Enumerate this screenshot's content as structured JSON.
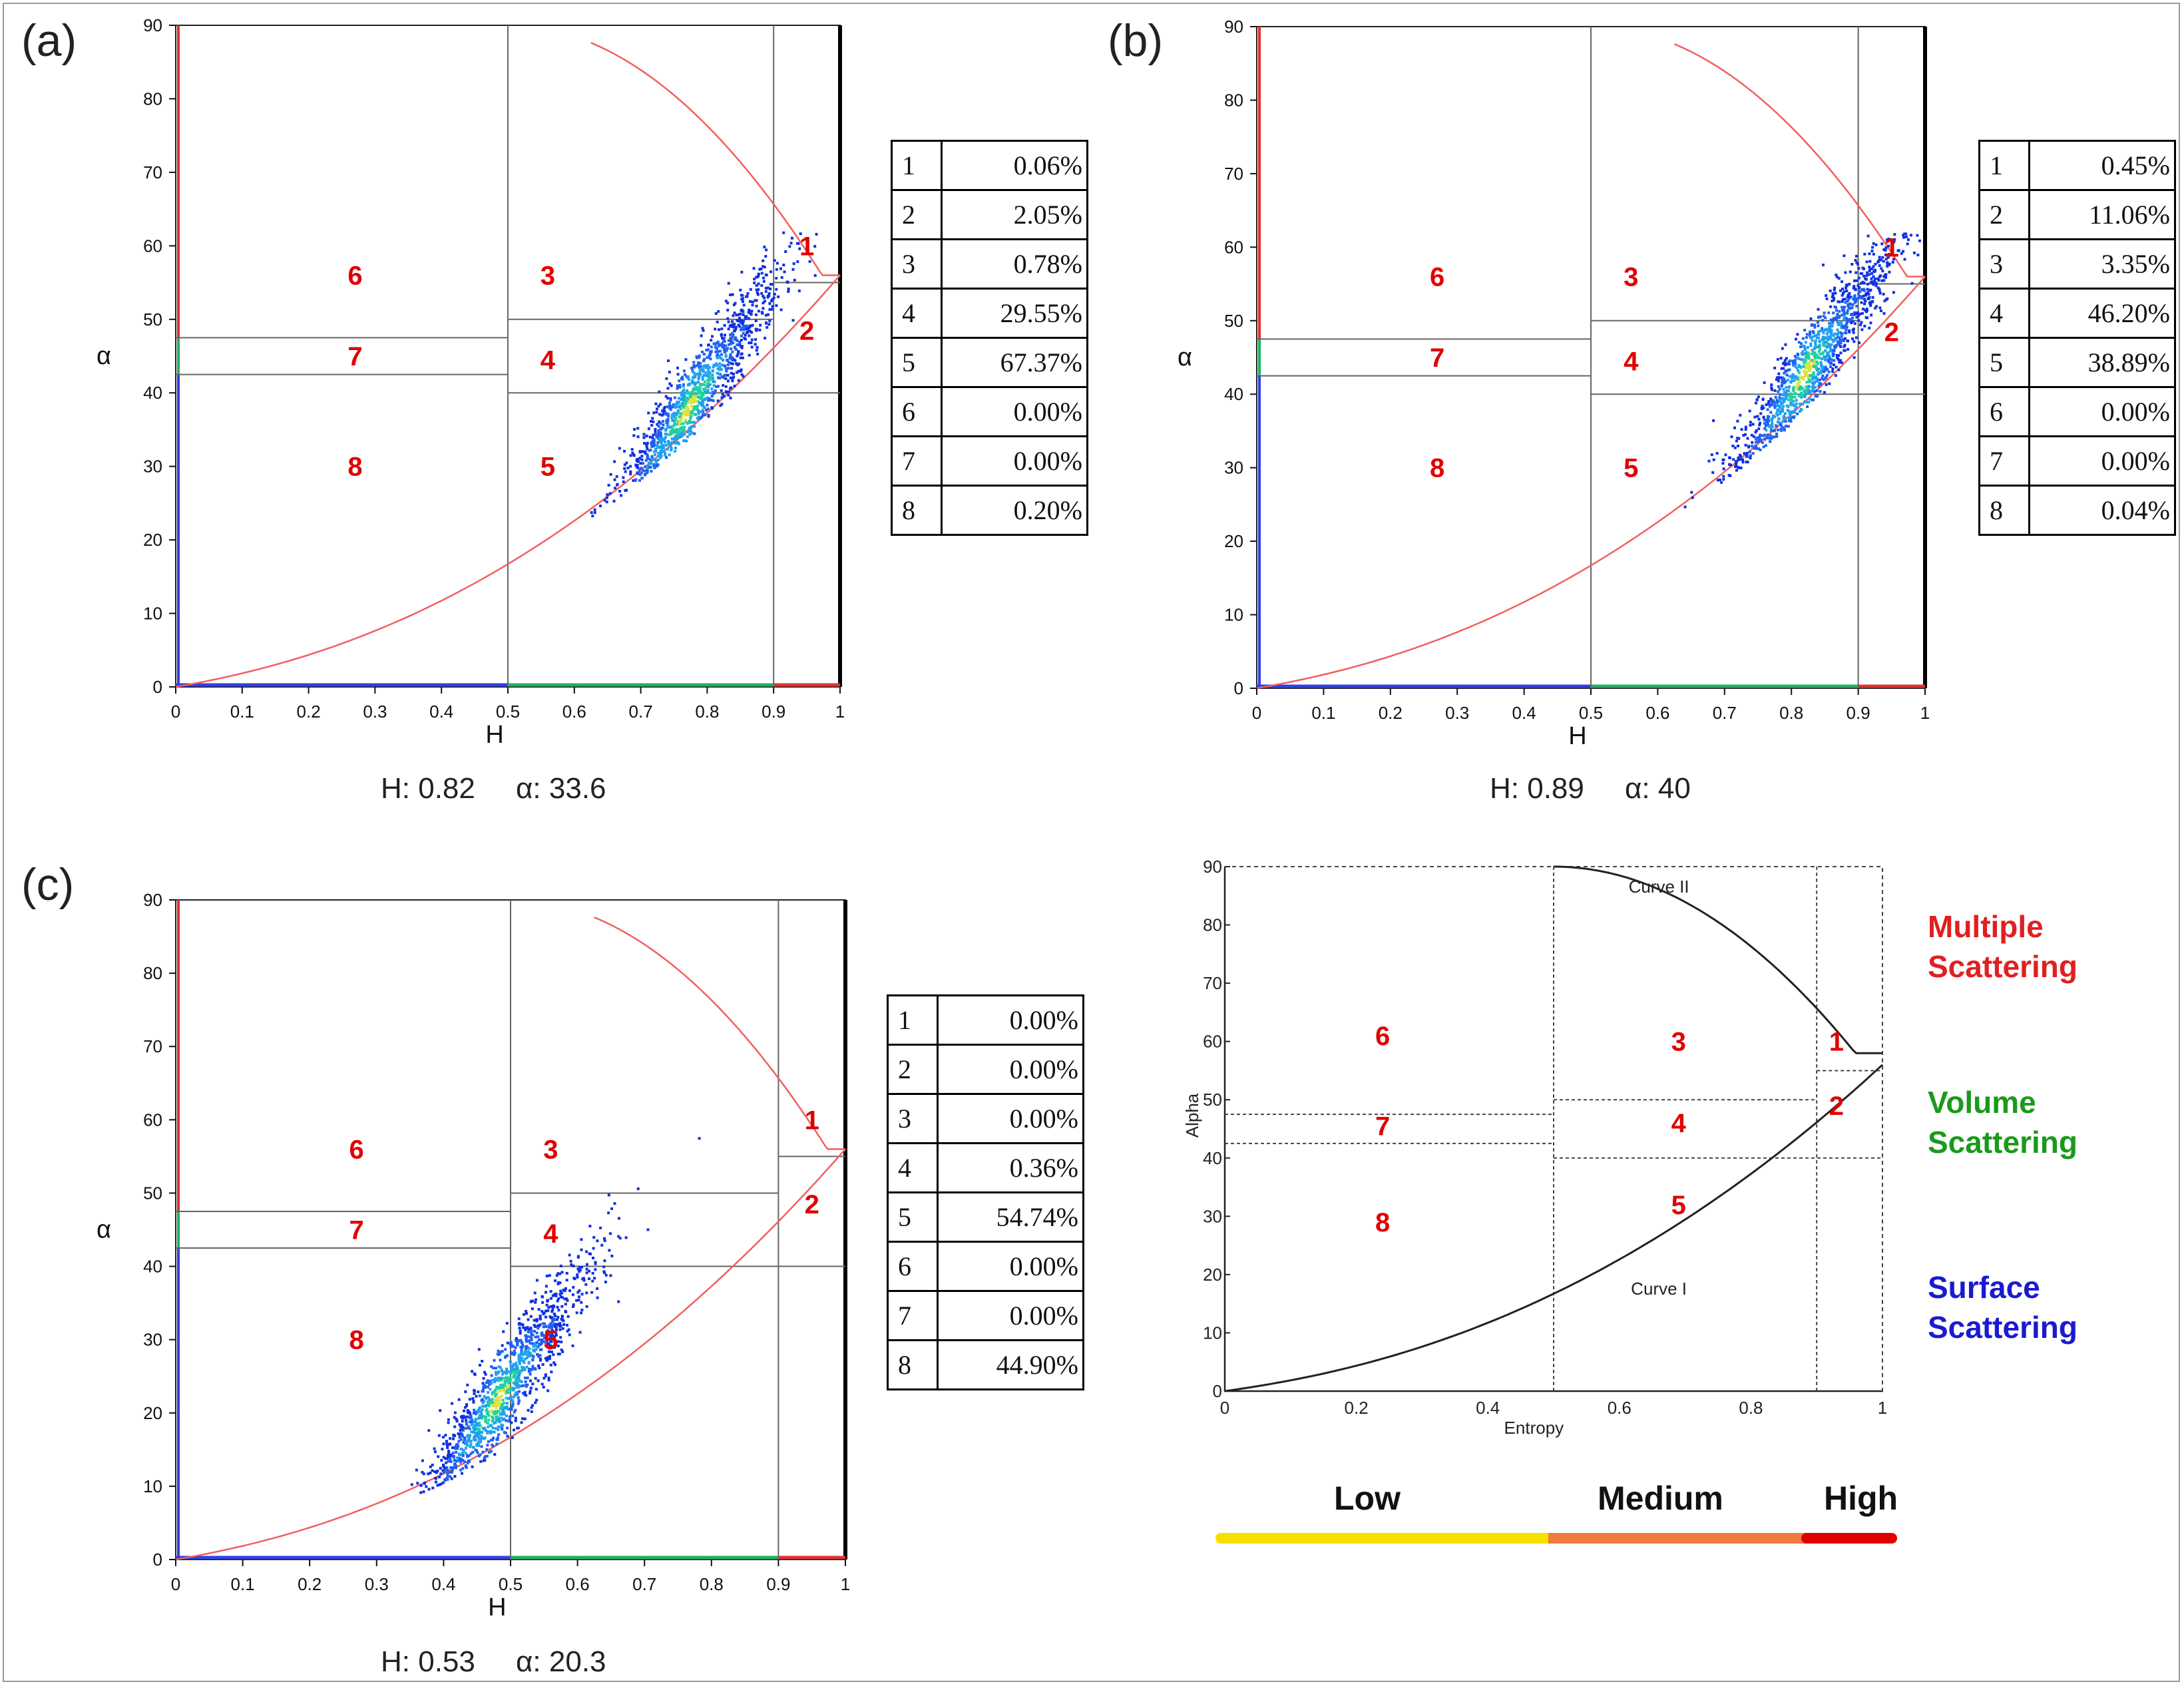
{
  "panels": [
    {
      "id": "a",
      "label": "(a)",
      "stats": "H: 0.82     α: 33.6",
      "xlabel": "H",
      "ylabel": "α",
      "xticks": [
        "0",
        "0.1",
        "0.2",
        "0.3",
        "0.4",
        "0.5",
        "0.6",
        "0.7",
        "0.8",
        "0.9",
        "1"
      ],
      "yticks": [
        "0",
        "10",
        "20",
        "30",
        "40",
        "50",
        "60",
        "70",
        "80",
        "90"
      ],
      "zones": [
        {
          "name": "1",
          "pct": "0.06%"
        },
        {
          "name": "2",
          "pct": "2.05%"
        },
        {
          "name": "3",
          "pct": "0.78%"
        },
        {
          "name": "4",
          "pct": "29.55%"
        },
        {
          "name": "5",
          "pct": "67.37%"
        },
        {
          "name": "6",
          "pct": "0.00%"
        },
        {
          "name": "7",
          "pct": "0.00%"
        },
        {
          "name": "8",
          "pct": "0.20%"
        }
      ],
      "region_labels": [
        "1",
        "2",
        "3",
        "4",
        "5",
        "6",
        "7",
        "8"
      ],
      "cluster": {
        "h": 0.77,
        "alpha": 38
      }
    },
    {
      "id": "b",
      "label": "(b)",
      "stats": "H: 0.89     α: 40",
      "xlabel": "H",
      "ylabel": "α",
      "xticks": [
        "0",
        "0.1",
        "0.2",
        "0.3",
        "0.4",
        "0.5",
        "0.6",
        "0.7",
        "0.8",
        "0.9",
        "1"
      ],
      "yticks": [
        "0",
        "10",
        "20",
        "30",
        "40",
        "50",
        "60",
        "70",
        "80",
        "90"
      ],
      "zones": [
        {
          "name": "1",
          "pct": "0.45%"
        },
        {
          "name": "2",
          "pct": "11.06%"
        },
        {
          "name": "3",
          "pct": "3.35%"
        },
        {
          "name": "4",
          "pct": "46.20%"
        },
        {
          "name": "5",
          "pct": "38.89%"
        },
        {
          "name": "6",
          "pct": "0.00%"
        },
        {
          "name": "7",
          "pct": "0.00%"
        },
        {
          "name": "8",
          "pct": "0.04%"
        }
      ],
      "region_labels": [
        "1",
        "2",
        "3",
        "4",
        "5",
        "6",
        "7",
        "8"
      ],
      "cluster": {
        "h": 0.82,
        "alpha": 43
      }
    },
    {
      "id": "c",
      "label": "(c)",
      "stats": "H: 0.53     α: 20.3",
      "xlabel": "H",
      "ylabel": "α",
      "xticks": [
        "0",
        "0.1",
        "0.2",
        "0.3",
        "0.4",
        "0.5",
        "0.6",
        "0.7",
        "0.8",
        "0.9",
        "1"
      ],
      "yticks": [
        "0",
        "10",
        "20",
        "30",
        "40",
        "50",
        "60",
        "70",
        "80",
        "90"
      ],
      "zones": [
        {
          "name": "1",
          "pct": "0.00%"
        },
        {
          "name": "2",
          "pct": "0.00%"
        },
        {
          "name": "3",
          "pct": "0.00%"
        },
        {
          "name": "4",
          "pct": "0.36%"
        },
        {
          "name": "5",
          "pct": "54.74%"
        },
        {
          "name": "6",
          "pct": "0.00%"
        },
        {
          "name": "7",
          "pct": "0.00%"
        },
        {
          "name": "8",
          "pct": "44.90%"
        }
      ],
      "region_labels": [
        "1",
        "2",
        "3",
        "4",
        "5",
        "6",
        "7",
        "8"
      ],
      "cluster": {
        "h": 0.48,
        "alpha": 22
      }
    }
  ],
  "reference_plot": {
    "xlabel": "Entropy",
    "ylabel": "Alpha",
    "xticks": [
      "0",
      "0.2",
      "0.4",
      "0.6",
      "0.8",
      "1"
    ],
    "yticks": [
      "0",
      "10",
      "20",
      "30",
      "40",
      "50",
      "60",
      "70",
      "80",
      "90"
    ],
    "curve_upper": "Curve II",
    "curve_lower": "Curve I",
    "region_labels": [
      "1",
      "2",
      "3",
      "4",
      "5",
      "6",
      "7",
      "8"
    ]
  },
  "legend": [
    {
      "line1": "Multiple",
      "line2": "Scattering",
      "color": "#e02020"
    },
    {
      "line1": "Volume",
      "line2": "Scattering",
      "color": "#1a9a1a"
    },
    {
      "line1": "Surface",
      "line2": "Scattering",
      "color": "#1a1ad0"
    }
  ],
  "entropy_bar": [
    {
      "label": "Low",
      "color": "#f5e000"
    },
    {
      "label": "Medium",
      "color": "#f07a40"
    },
    {
      "label": "High",
      "color": "#e00000"
    }
  ],
  "chart_data": [
    {
      "type": "scatter",
      "title": "(a)",
      "xlabel": "H",
      "ylabel": "α",
      "xlim": [
        0,
        1
      ],
      "ylim": [
        0,
        90
      ],
      "zone_boundaries": {
        "h": [
          0.5,
          0.9
        ],
        "alpha_low_entropy": [
          42.5,
          47.5
        ],
        "alpha_mid_entropy": [
          40,
          50
        ],
        "alpha_high_entropy": [
          40,
          55
        ]
      },
      "mean": {
        "H": 0.82,
        "alpha": 33.6
      },
      "zone_percentages": {
        "1": 0.06,
        "2": 2.05,
        "3": 0.78,
        "4": 29.55,
        "5": 67.37,
        "6": 0.0,
        "7": 0.0,
        "8": 0.2
      }
    },
    {
      "type": "scatter",
      "title": "(b)",
      "xlabel": "H",
      "ylabel": "α",
      "xlim": [
        0,
        1
      ],
      "ylim": [
        0,
        90
      ],
      "zone_boundaries": {
        "h": [
          0.5,
          0.9
        ],
        "alpha_low_entropy": [
          42.5,
          47.5
        ],
        "alpha_mid_entropy": [
          40,
          50
        ],
        "alpha_high_entropy": [
          40,
          55
        ]
      },
      "mean": {
        "H": 0.89,
        "alpha": 40
      },
      "zone_percentages": {
        "1": 0.45,
        "2": 11.06,
        "3": 3.35,
        "4": 46.2,
        "5": 38.89,
        "6": 0.0,
        "7": 0.0,
        "8": 0.04
      }
    },
    {
      "type": "scatter",
      "title": "(c)",
      "xlabel": "H",
      "ylabel": "α",
      "xlim": [
        0,
        1
      ],
      "ylim": [
        0,
        90
      ],
      "zone_boundaries": {
        "h": [
          0.5,
          0.9
        ],
        "alpha_low_entropy": [
          42.5,
          47.5
        ],
        "alpha_mid_entropy": [
          40,
          50
        ],
        "alpha_high_entropy": [
          40,
          55
        ]
      },
      "mean": {
        "H": 0.53,
        "alpha": 20.3
      },
      "zone_percentages": {
        "1": 0.0,
        "2": 0.0,
        "3": 0.0,
        "4": 0.36,
        "5": 54.74,
        "6": 0.0,
        "7": 0.0,
        "8": 44.9
      }
    }
  ]
}
